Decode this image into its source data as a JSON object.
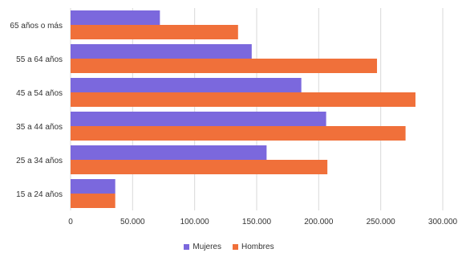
{
  "chart_data": {
    "type": "bar",
    "orientation": "horizontal",
    "categories": [
      "65 años o más",
      "55 a 64 años",
      "45 a 54 años",
      "35 a 44 años",
      "25 a 34 años",
      "15 a 24 años"
    ],
    "series": [
      {
        "name": "Mujeres",
        "color": "#7b68dd",
        "values": [
          72000,
          146000,
          186000,
          206000,
          158000,
          36000
        ]
      },
      {
        "name": "Hombres",
        "color": "#f0703a",
        "values": [
          135000,
          247000,
          278000,
          270000,
          207000,
          36000
        ]
      }
    ],
    "x_tick_labels": [
      "0",
      "50.000",
      "100.000",
      "150.000",
      "200.000",
      "250.000",
      "300.000"
    ],
    "x_ticks": [
      0,
      50000,
      100000,
      150000,
      200000,
      250000,
      300000
    ],
    "xlim": [
      0,
      300000
    ],
    "grid": true,
    "legend_position": "bottom"
  }
}
